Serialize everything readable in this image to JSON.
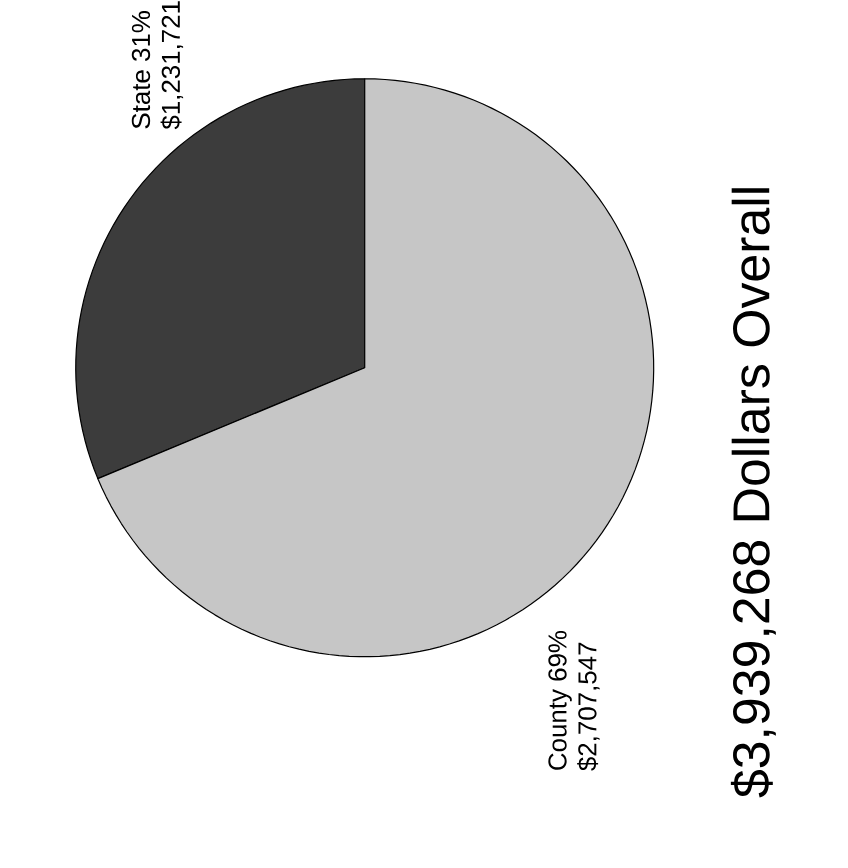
{
  "chart_data": {
    "type": "pie",
    "title": "$3,939,268 Dollars Overall",
    "categories": [
      "State 31%",
      "County 69%"
    ],
    "values": [
      1231721,
      2707547
    ],
    "value_labels": [
      "$1,231,721",
      "$2,707,547"
    ],
    "colors": [
      "#3c3c3c",
      "#c6c6c6"
    ]
  }
}
